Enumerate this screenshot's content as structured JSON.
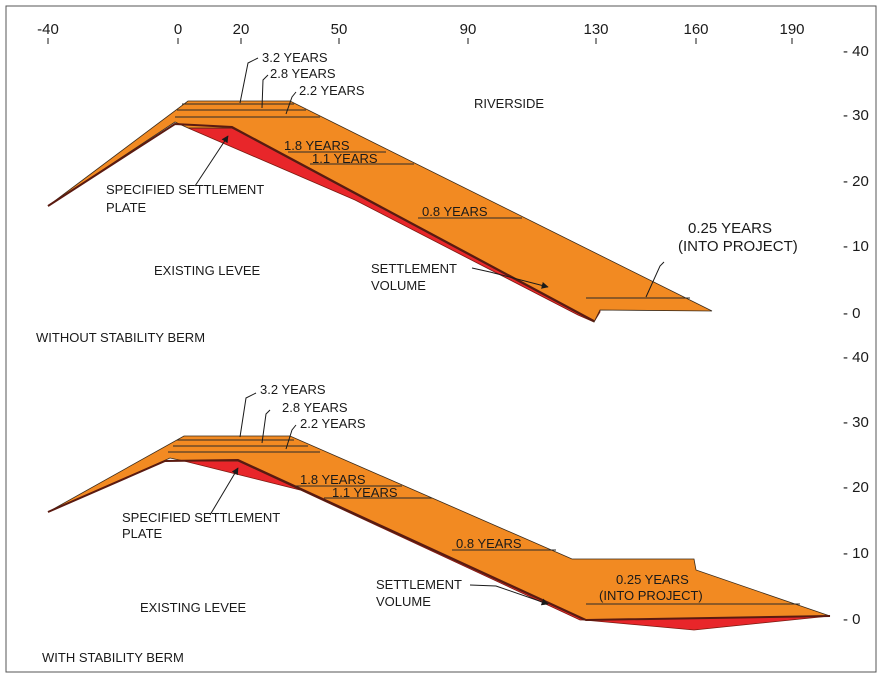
{
  "colors": {
    "fill": "#f28a22",
    "settlement": "#e8262a",
    "outline": "#3a2a1a"
  },
  "x_ticks": [
    "-40",
    "0",
    "20",
    "50",
    "90",
    "130",
    "160",
    "190"
  ],
  "y_ticks_top": [
    "- 40",
    "- 30",
    "- 20",
    "- 10",
    "- 0"
  ],
  "y_ticks_bottom": [
    "- 40",
    "- 30",
    "- 20",
    "- 10",
    "- 0"
  ],
  "top_panel": {
    "caption": "WITHOUT STABILITY BERM",
    "riverside": "RIVERSIDE",
    "existing_levee": "EXISTING LEVEE",
    "years_3_2": "3.2 YEARS",
    "years_2_8": "2.8 YEARS",
    "years_2_2": "2.2 YEARS",
    "years_1_8": "1.8 YEARS",
    "years_1_1": "1.1 YEARS",
    "years_0_8": "0.8 YEARS",
    "years_0_25": "0.25 YEARS",
    "into_project": "(INTO PROJECT)",
    "plate_line1": "SPECIFIED SETTLEMENT",
    "plate_line2": "PLATE",
    "volume_line1": "SETTLEMENT",
    "volume_line2": "VOLUME"
  },
  "bottom_panel": {
    "caption": "WITH STABILITY BERM",
    "existing_levee": "EXISTING LEVEE",
    "years_3_2": "3.2 YEARS",
    "years_2_8": "2.8 YEARS",
    "years_2_2": "2.2 YEARS",
    "years_1_8": "1.8 YEARS",
    "years_1_1": "1.1 YEARS",
    "years_0_8": "0.8 YEARS",
    "years_0_25": "0.25 YEARS",
    "into_project": "(INTO PROJECT)",
    "plate_line1": "SPECIFIED SETTLEMENT",
    "plate_line2": "PLATE",
    "volume_line1": "SETTLEMENT",
    "volume_line2": "VOLUME"
  }
}
